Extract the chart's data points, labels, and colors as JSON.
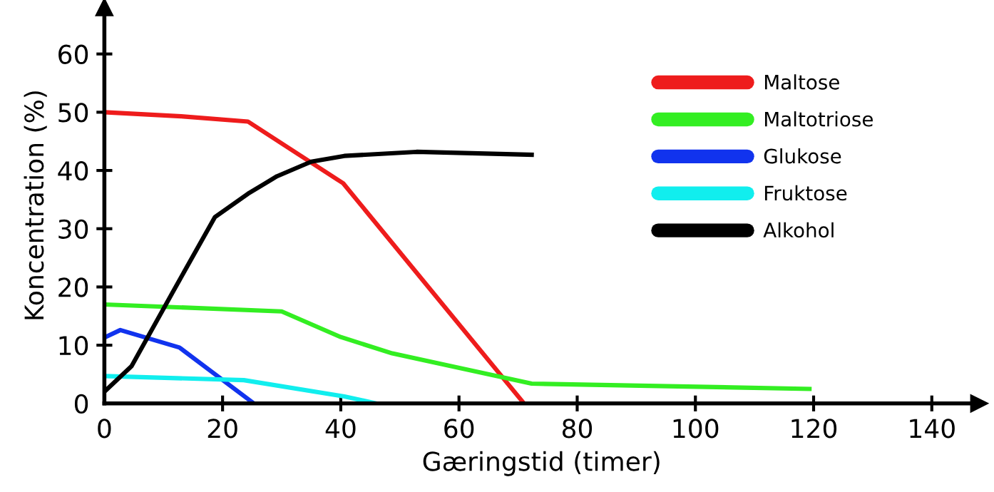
{
  "chart_data": {
    "type": "line",
    "xlabel": "Gæringstid (timer)",
    "ylabel": "Koncentration (%)",
    "xlim": [
      0,
      148
    ],
    "ylim": [
      0,
      68
    ],
    "xticks": [
      0,
      20,
      40,
      60,
      80,
      100,
      120,
      140
    ],
    "yticks": [
      0,
      10,
      20,
      30,
      40,
      50,
      60
    ],
    "grid": false,
    "legend": "right",
    "marker": "none",
    "line_style": "solid",
    "series": [
      {
        "name": "Maltose",
        "color": "#ee1c1c",
        "x": [
          0,
          13,
          24.3,
          40.4,
          71
        ],
        "values": [
          50,
          49.3,
          48.4,
          37.8,
          0
        ]
      },
      {
        "name": "Maltotriose",
        "color": "#33ee22",
        "x": [
          0,
          30,
          40,
          48.7,
          72.3,
          119.3
        ],
        "values": [
          17,
          15.8,
          11.4,
          8.6,
          3.4,
          2.5
        ]
      },
      {
        "name": "Glukose",
        "color": "#1133ee",
        "x": [
          0,
          2.7,
          12.7,
          25.3
        ],
        "values": [
          11.3,
          12.6,
          9.6,
          0
        ]
      },
      {
        "name": "Fruktose",
        "color": "#11eeee",
        "x": [
          0,
          23.6,
          40.6,
          46
        ],
        "values": [
          4.7,
          4,
          1.2,
          0
        ]
      },
      {
        "name": "Alkohol",
        "color": "#000000",
        "x": [
          0,
          4.6,
          11.4,
          18.7,
          24.3,
          29.2,
          35,
          40.6,
          52.8,
          72.3
        ],
        "values": [
          2,
          6.4,
          18.8,
          32,
          36,
          39,
          41.5,
          42.5,
          43.2,
          42.7
        ]
      }
    ]
  }
}
